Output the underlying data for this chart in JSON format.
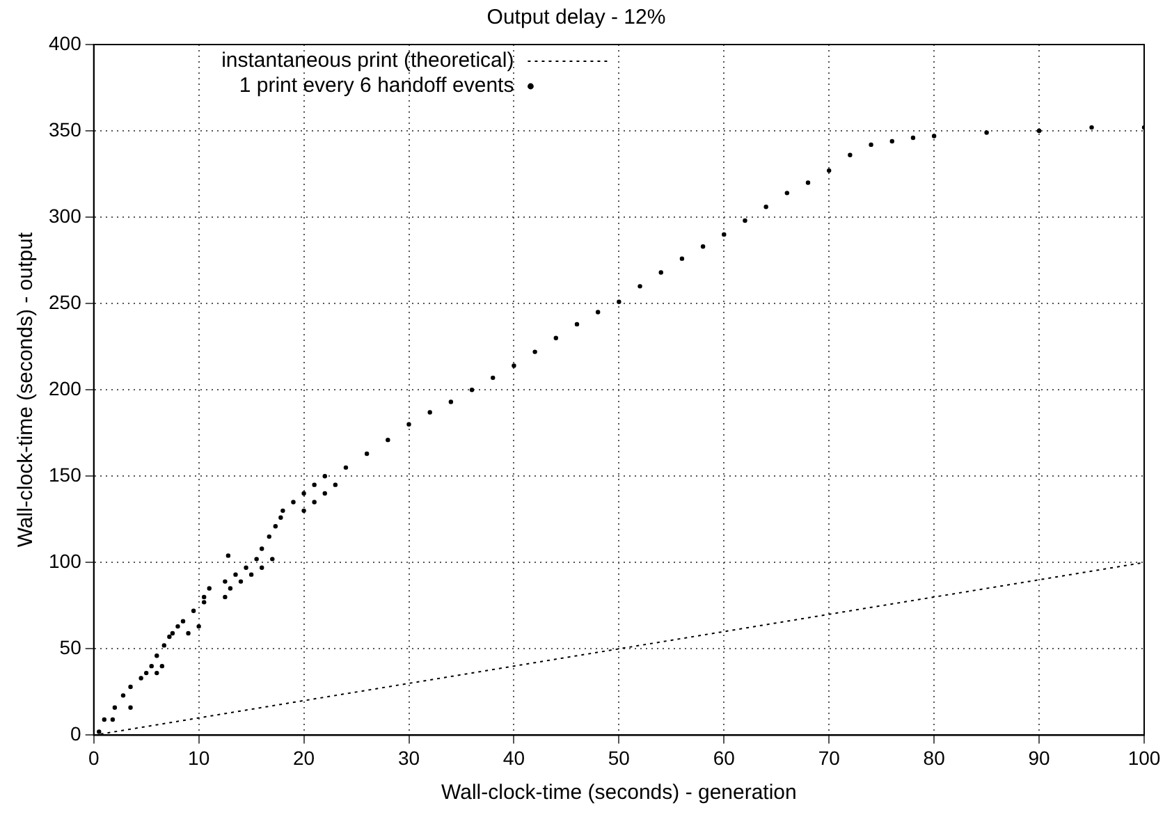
{
  "chart_data": {
    "type": "scatter",
    "title": "Output delay - 12%",
    "xlabel": "Wall-clock-time (seconds) - generation",
    "ylabel": "Wall-clock-time (seconds) - output",
    "xlim": [
      0,
      100
    ],
    "xticks": [
      0,
      10,
      20,
      30,
      40,
      50,
      60,
      70,
      80,
      90,
      100
    ],
    "ylim": [
      0,
      400
    ],
    "yticks": [
      0,
      50,
      100,
      150,
      200,
      250,
      300,
      350,
      400
    ],
    "grid": true,
    "legend": "top",
    "marker": "circle",
    "series": [
      {
        "name": "instantaneous print (theoretical)",
        "type": "line",
        "line_style": "dotted",
        "marker": "none",
        "color": "#000000",
        "x": [
          0,
          100
        ],
        "values": [
          0,
          100
        ]
      },
      {
        "name": "1 print every 6 handoff events",
        "color": "#000000",
        "x": [
          0.5,
          1,
          1.8,
          2,
          3.5,
          2.8,
          3.5,
          4.5,
          5,
          6,
          5.5,
          6.5,
          6,
          6.7,
          7.2,
          7.5,
          9,
          8,
          10,
          8.5,
          9.5,
          10.5,
          10.5,
          12.5,
          11,
          13,
          12.5,
          14,
          13.5,
          15,
          14.5,
          16,
          15.5,
          17,
          12.8,
          16,
          16.7,
          17.3,
          17.8,
          18,
          20,
          19,
          21,
          20,
          22,
          21,
          23,
          22,
          24,
          26,
          28,
          30,
          32,
          34,
          36,
          38,
          40,
          42,
          44,
          46,
          48,
          50,
          52,
          54,
          56,
          58,
          60,
          62,
          64,
          66,
          68,
          70,
          72,
          74,
          76,
          78,
          80,
          85,
          90,
          95,
          100
        ],
        "values": [
          2,
          9,
          9,
          16,
          16,
          23,
          28,
          33,
          36,
          36,
          40,
          40,
          46,
          52,
          57,
          59,
          59,
          63,
          63,
          66,
          72,
          77,
          80,
          80,
          85,
          85,
          89,
          89,
          93,
          93,
          97,
          97,
          102,
          102,
          104,
          108,
          115,
          121,
          126,
          130,
          130,
          135,
          135,
          140,
          140,
          145,
          145,
          150,
          155,
          163,
          171,
          180,
          187,
          193,
          200,
          207,
          214,
          222,
          230,
          238,
          245,
          251,
          260,
          268,
          276,
          283,
          290,
          298,
          306,
          314,
          320,
          327,
          336,
          342,
          344,
          346,
          347,
          349,
          350,
          352,
          352
        ]
      }
    ]
  }
}
